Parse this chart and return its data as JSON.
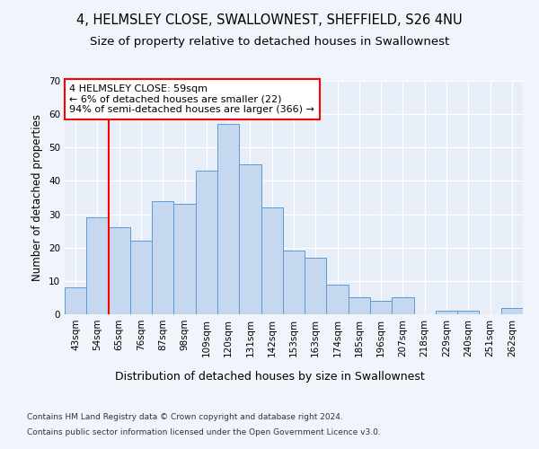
{
  "title1": "4, HELMSLEY CLOSE, SWALLOWNEST, SHEFFIELD, S26 4NU",
  "title2": "Size of property relative to detached houses in Swallownest",
  "xlabel": "Distribution of detached houses by size in Swallownest",
  "ylabel": "Number of detached properties",
  "categories": [
    "43sqm",
    "54sqm",
    "65sqm",
    "76sqm",
    "87sqm",
    "98sqm",
    "109sqm",
    "120sqm",
    "131sqm",
    "142sqm",
    "153sqm",
    "163sqm",
    "174sqm",
    "185sqm",
    "196sqm",
    "207sqm",
    "218sqm",
    "229sqm",
    "240sqm",
    "251sqm",
    "262sqm"
  ],
  "values": [
    8,
    29,
    26,
    22,
    34,
    33,
    43,
    57,
    45,
    32,
    19,
    17,
    9,
    5,
    4,
    5,
    0,
    1,
    1,
    0,
    2
  ],
  "bar_color": "#c5d8f0",
  "bar_edge_color": "#5b9bd5",
  "annotation_text": "4 HELMSLEY CLOSE: 59sqm\n← 6% of detached houses are smaller (22)\n94% of semi-detached houses are larger (366) →",
  "annotation_box_color": "white",
  "annotation_box_edge_color": "red",
  "red_line_color": "red",
  "ylim": [
    0,
    70
  ],
  "yticks": [
    0,
    10,
    20,
    30,
    40,
    50,
    60,
    70
  ],
  "background_color": "#f0f4fb",
  "plot_bg_color": "#e8eef8",
  "footnote1": "Contains HM Land Registry data © Crown copyright and database right 2024.",
  "footnote2": "Contains public sector information licensed under the Open Government Licence v3.0.",
  "title1_fontsize": 10.5,
  "title2_fontsize": 9.5,
  "xlabel_fontsize": 9,
  "ylabel_fontsize": 8.5,
  "tick_fontsize": 7.5,
  "annotation_fontsize": 8,
  "footnote_fontsize": 6.5
}
